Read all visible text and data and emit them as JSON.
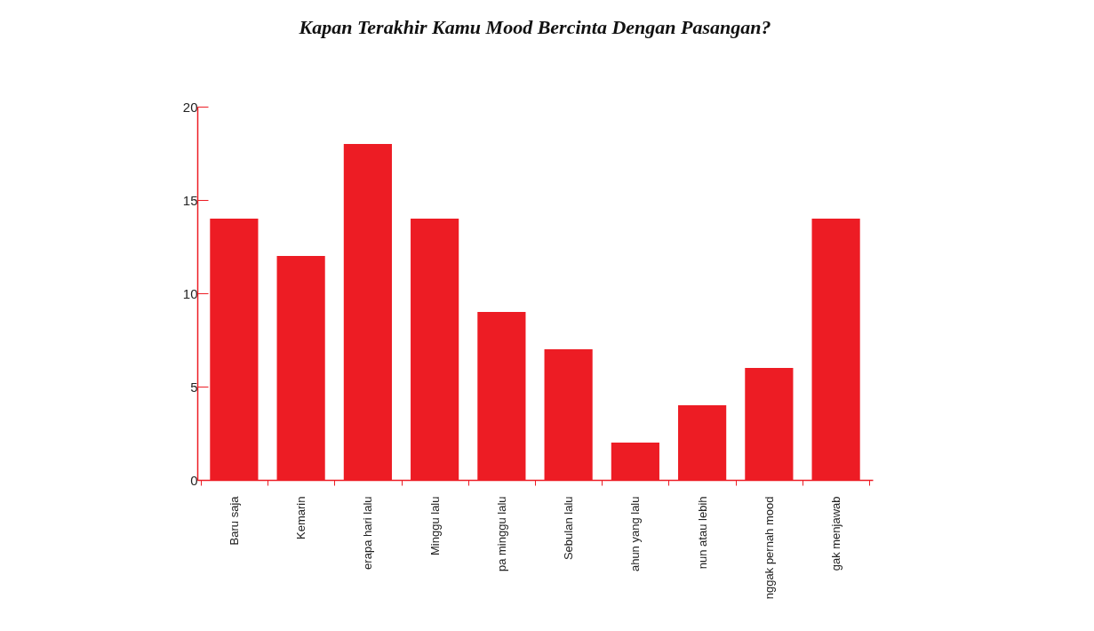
{
  "chart_data": {
    "type": "bar",
    "title": "Kapan Terakhir Kamu Mood Bercinta Dengan Pasangan?",
    "categories": [
      "Baru saja",
      "Kemarin",
      "erapa hari lalu",
      "Minggu lalu",
      "pa minggu lalu",
      "Sebulan lalu",
      "ahun yang lalu",
      "nun atau lebih",
      "nggak pernah mood",
      "gak menjawab"
    ],
    "values": [
      14,
      12,
      18,
      14,
      9,
      7,
      2,
      4,
      6,
      14
    ],
    "color": "#ed1c24",
    "ylim": [
      0,
      20
    ],
    "yticks": [
      0,
      5,
      10,
      15,
      20
    ],
    "grid": false
  }
}
